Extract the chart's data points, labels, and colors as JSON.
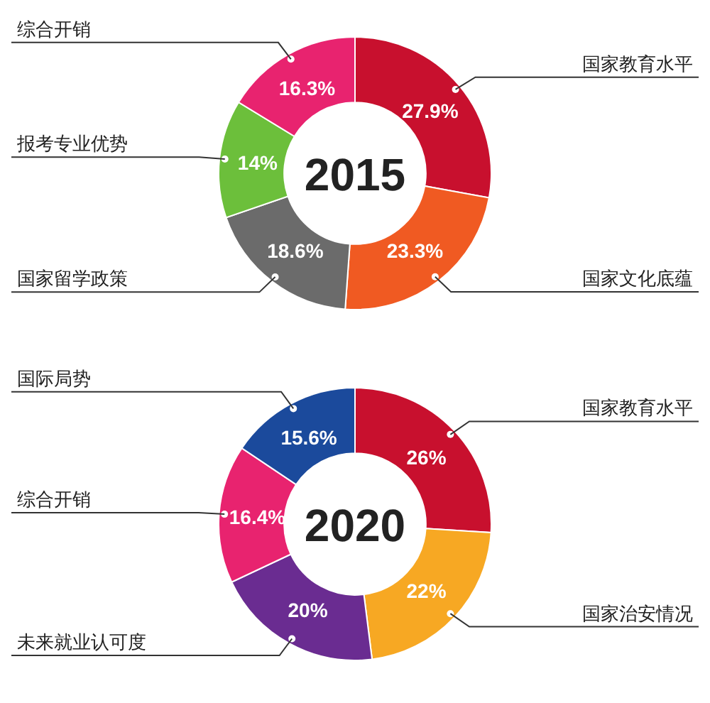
{
  "chart_data": [
    {
      "type": "donut",
      "title": "2015",
      "categories": [
        "国家教育水平",
        "国家文化底蕴",
        "国家留学政策",
        "报考专业优势",
        "综合开销"
      ],
      "values": [
        27.9,
        23.3,
        18.6,
        14,
        16.3
      ],
      "value_labels": [
        "27.9%",
        "23.3%",
        "18.6%",
        "14%",
        "16.3%"
      ],
      "colors": [
        "#c8102e",
        "#f05a22",
        "#6b6b6b",
        "#6cbf3b",
        "#e8236f"
      ]
    },
    {
      "type": "donut",
      "title": "2020",
      "categories": [
        "国家教育水平",
        "国家治安情况",
        "未来就业认可度",
        "综合开销",
        "国际局势"
      ],
      "values": [
        26,
        22,
        20,
        16.4,
        15.6
      ],
      "value_labels": [
        "26%",
        "22%",
        "20%",
        "16.4%",
        "15.6%"
      ],
      "colors": [
        "#c8102e",
        "#f7a823",
        "#6a2c91",
        "#e8236f",
        "#1b4a9c"
      ]
    }
  ]
}
